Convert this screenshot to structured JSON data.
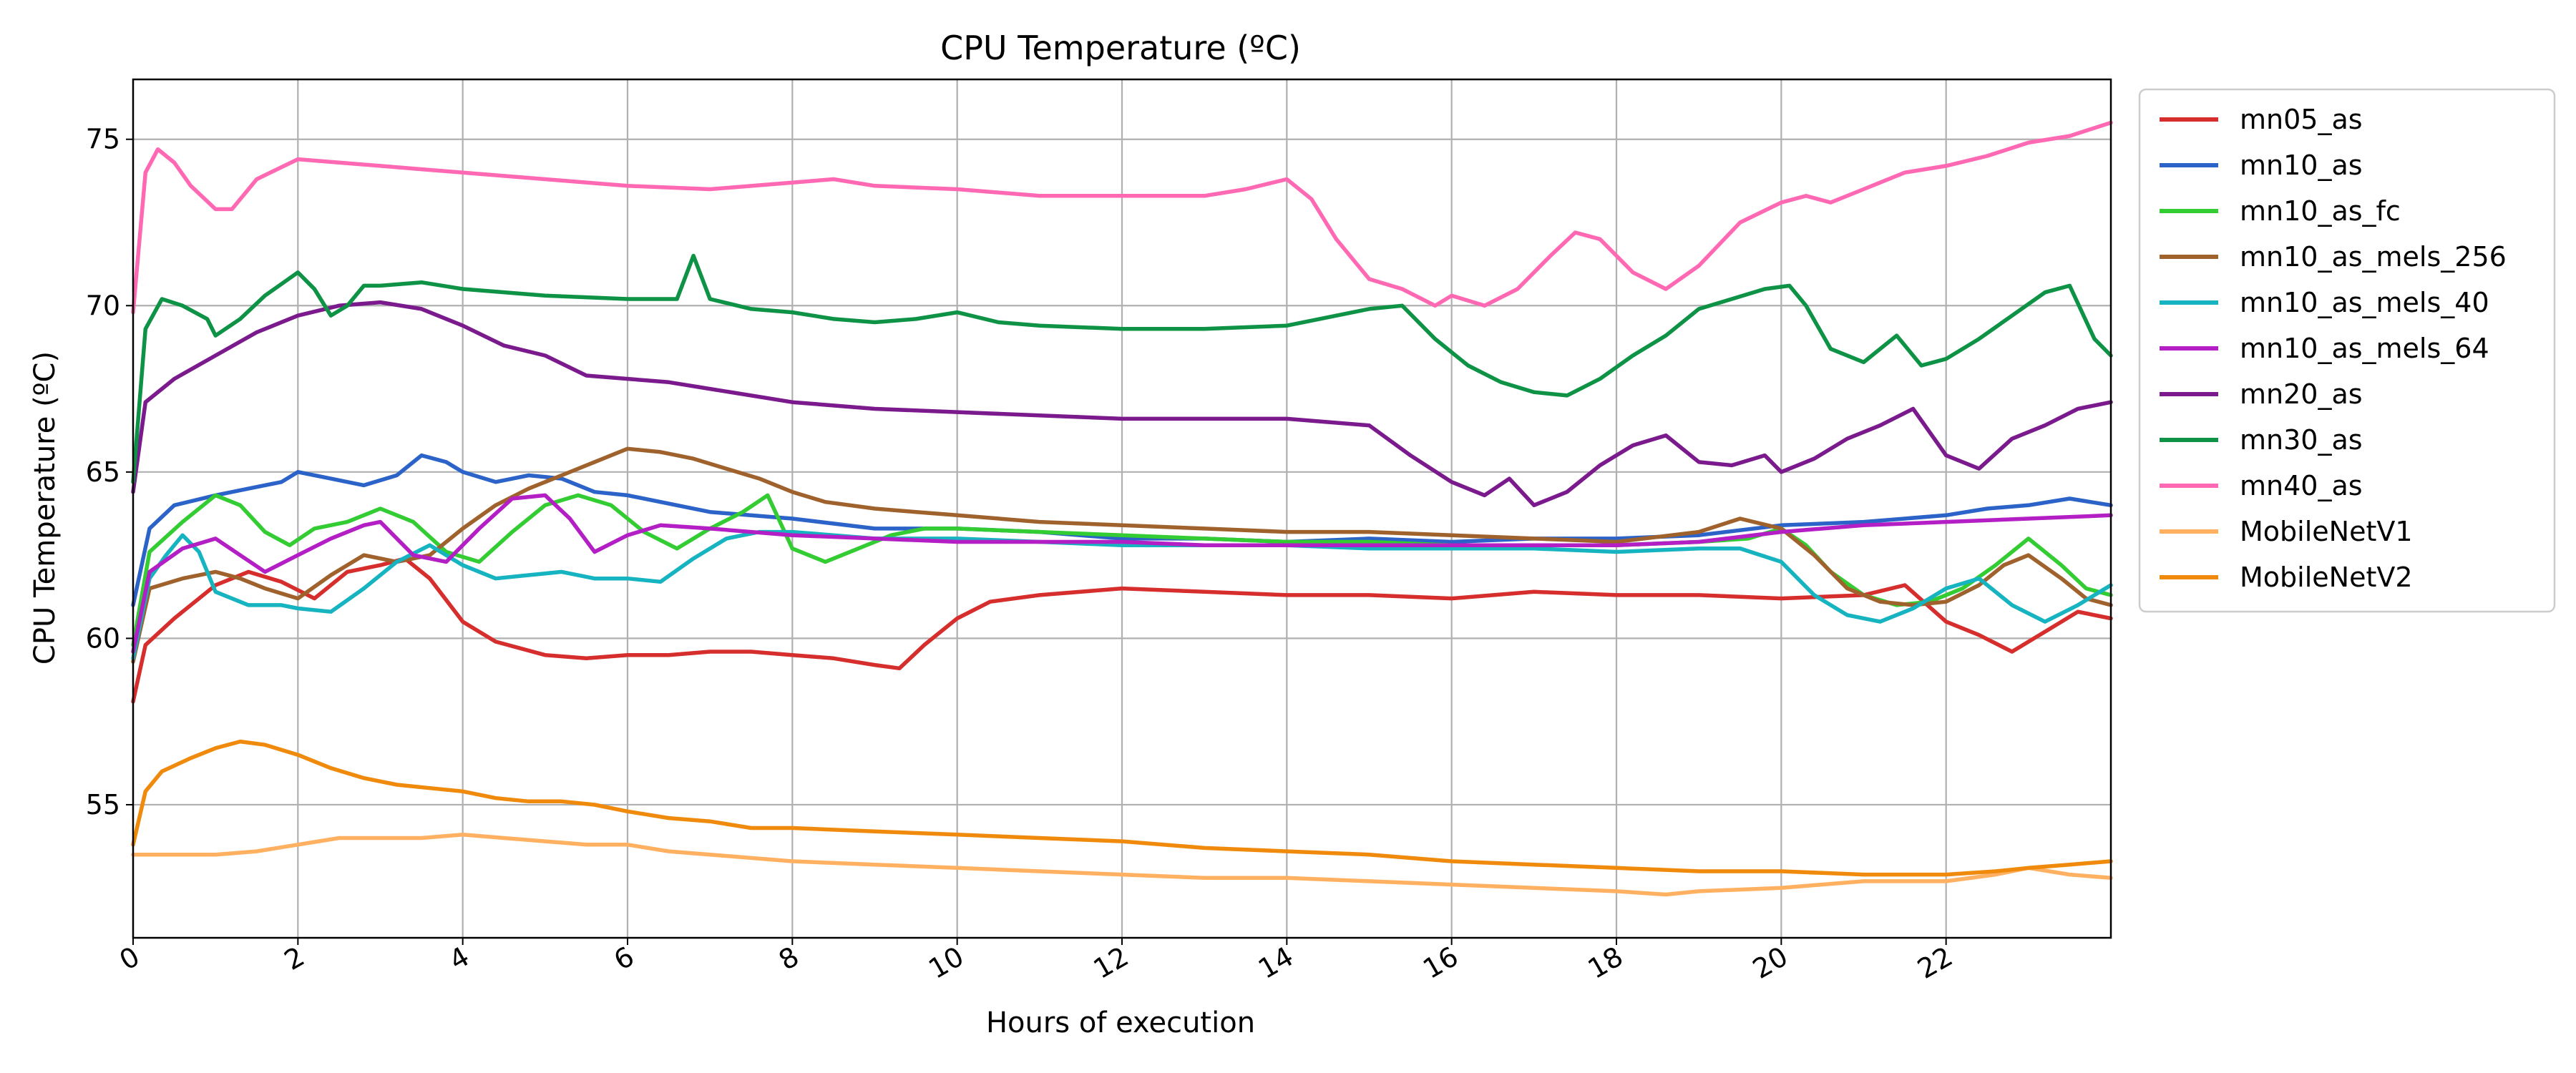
{
  "chart_data": {
    "type": "line",
    "title": "CPU Temperature (ºC)",
    "xlabel": "Hours of execution",
    "ylabel": "CPU Temperature (ºC)",
    "xlim": [
      0,
      24
    ],
    "ylim": [
      51,
      76.8
    ],
    "xticks": [
      0,
      2,
      4,
      6,
      8,
      10,
      12,
      14,
      16,
      18,
      20,
      22
    ],
    "yticks": [
      55,
      60,
      65,
      70,
      75
    ],
    "grid": true,
    "legend_position": "outside-right-top",
    "series": [
      {
        "name": "mn05_as",
        "color": "#d62d2d",
        "x": [
          0,
          0.15,
          0.5,
          1,
          1.4,
          1.8,
          2.2,
          2.6,
          3,
          3.3,
          3.6,
          4,
          4.4,
          5,
          5.5,
          6,
          6.5,
          7,
          7.5,
          8,
          8.5,
          9,
          9.3,
          9.6,
          10,
          10.4,
          11,
          12,
          13,
          14,
          15,
          16,
          17,
          18,
          19,
          20,
          21,
          21.5,
          22,
          22.4,
          22.8,
          23.2,
          23.6,
          24
        ],
        "y": [
          58.1,
          59.8,
          60.6,
          61.6,
          62.0,
          61.7,
          61.2,
          62.0,
          62.2,
          62.4,
          61.8,
          60.5,
          59.9,
          59.5,
          59.4,
          59.5,
          59.5,
          59.6,
          59.6,
          59.5,
          59.4,
          59.2,
          59.1,
          59.8,
          60.6,
          61.1,
          61.3,
          61.5,
          61.4,
          61.3,
          61.3,
          61.2,
          61.4,
          61.3,
          61.3,
          61.2,
          61.3,
          61.6,
          60.5,
          60.1,
          59.6,
          60.2,
          60.8,
          60.6
        ]
      },
      {
        "name": "mn10_as",
        "color": "#2b63c9",
        "x": [
          0,
          0.2,
          0.5,
          1,
          1.4,
          1.8,
          2,
          2.4,
          2.8,
          3.2,
          3.5,
          3.8,
          4,
          4.4,
          4.8,
          5.2,
          5.6,
          6,
          7,
          8,
          9,
          10,
          11,
          12,
          13,
          14,
          15,
          16,
          17,
          18,
          19,
          20,
          21,
          22,
          22.5,
          23,
          23.5,
          24
        ],
        "y": [
          61.0,
          63.3,
          64.0,
          64.3,
          64.5,
          64.7,
          65.0,
          64.8,
          64.6,
          64.9,
          65.5,
          65.3,
          65.0,
          64.7,
          64.9,
          64.8,
          64.4,
          64.3,
          63.8,
          63.6,
          63.3,
          63.3,
          63.2,
          63.0,
          63.0,
          62.9,
          63.0,
          62.9,
          63.0,
          63.0,
          63.1,
          63.4,
          63.5,
          63.7,
          63.9,
          64.0,
          64.2,
          64.0
        ]
      },
      {
        "name": "mn10_as_fc",
        "color": "#33cc33",
        "x": [
          0,
          0.2,
          0.6,
          1,
          1.3,
          1.6,
          1.9,
          2.2,
          2.6,
          3,
          3.4,
          3.8,
          4.2,
          4.6,
          5,
          5.4,
          5.8,
          6.2,
          6.6,
          7,
          7.4,
          7.7,
          8,
          8.4,
          8.8,
          9.2,
          9.6,
          10,
          11,
          12,
          13,
          14,
          15,
          16,
          17,
          18,
          19,
          19.6,
          20,
          20.3,
          20.6,
          21,
          21.4,
          21.8,
          22.2,
          22.6,
          23,
          23.4,
          23.7,
          24
        ],
        "y": [
          59.8,
          62.6,
          63.5,
          64.3,
          64.0,
          63.2,
          62.8,
          63.3,
          63.5,
          63.9,
          63.5,
          62.6,
          62.3,
          63.2,
          64.0,
          64.3,
          64.0,
          63.2,
          62.7,
          63.3,
          63.8,
          64.3,
          62.7,
          62.3,
          62.7,
          63.1,
          63.3,
          63.3,
          63.2,
          63.1,
          63.0,
          62.9,
          62.9,
          62.8,
          62.8,
          62.8,
          62.9,
          63.0,
          63.3,
          62.8,
          62.0,
          61.3,
          61.0,
          61.1,
          61.5,
          62.2,
          63.0,
          62.2,
          61.5,
          61.3
        ]
      },
      {
        "name": "mn10_as_mels_256",
        "color": "#a0622d",
        "x": [
          0,
          0.2,
          0.6,
          1,
          1.3,
          1.6,
          2,
          2.4,
          2.8,
          3.2,
          3.6,
          4,
          4.4,
          4.8,
          5.2,
          5.6,
          6,
          6.4,
          6.8,
          7.2,
          7.6,
          8,
          8.4,
          9,
          9.5,
          10,
          11,
          12,
          13,
          14,
          15,
          16,
          17,
          18,
          19,
          19.5,
          20,
          20.4,
          20.8,
          21.2,
          21.6,
          22,
          22.4,
          22.7,
          23,
          23.4,
          23.7,
          24
        ],
        "y": [
          59.3,
          61.5,
          61.8,
          62.0,
          61.8,
          61.5,
          61.2,
          61.9,
          62.5,
          62.3,
          62.5,
          63.3,
          64.0,
          64.5,
          64.9,
          65.3,
          65.7,
          65.6,
          65.4,
          65.1,
          64.8,
          64.4,
          64.1,
          63.9,
          63.8,
          63.7,
          63.5,
          63.4,
          63.3,
          63.2,
          63.2,
          63.1,
          63.0,
          62.9,
          63.2,
          63.6,
          63.3,
          62.5,
          61.5,
          61.1,
          61.0,
          61.1,
          61.6,
          62.2,
          62.5,
          61.8,
          61.2,
          61.0
        ]
      },
      {
        "name": "mn10_as_mels_40",
        "color": "#16b3c0",
        "x": [
          0,
          0.2,
          0.4,
          0.6,
          0.8,
          1,
          1.4,
          1.8,
          2,
          2.4,
          2.8,
          3.2,
          3.6,
          4,
          4.4,
          4.8,
          5.2,
          5.6,
          6,
          6.4,
          6.8,
          7.2,
          7.6,
          8,
          9,
          10,
          11,
          12,
          13,
          14,
          15,
          16,
          17,
          18,
          19,
          19.5,
          20,
          20.4,
          20.8,
          21.2,
          21.6,
          22,
          22.4,
          22.8,
          23.2,
          23.6,
          24
        ],
        "y": [
          59.4,
          61.8,
          62.5,
          63.1,
          62.6,
          61.4,
          61.0,
          61.0,
          60.9,
          60.8,
          61.5,
          62.3,
          62.8,
          62.2,
          61.8,
          61.9,
          62.0,
          61.8,
          61.8,
          61.7,
          62.4,
          63.0,
          63.2,
          63.2,
          63.0,
          63.0,
          62.9,
          62.8,
          62.8,
          62.8,
          62.7,
          62.7,
          62.7,
          62.6,
          62.7,
          62.7,
          62.3,
          61.3,
          60.7,
          60.5,
          60.9,
          61.5,
          61.8,
          61.0,
          60.5,
          61.0,
          61.6
        ]
      },
      {
        "name": "mn10_as_mels_64",
        "color": "#b31fc4",
        "x": [
          0,
          0.2,
          0.6,
          1,
          1.3,
          1.6,
          2,
          2.4,
          2.8,
          3,
          3.4,
          3.8,
          4.2,
          4.6,
          5,
          5.3,
          5.6,
          6,
          6.4,
          7,
          8,
          9,
          10,
          11,
          12,
          13,
          14,
          15,
          16,
          17,
          18,
          19,
          20,
          21,
          22,
          23,
          24
        ],
        "y": [
          59.6,
          62.0,
          62.7,
          63.0,
          62.5,
          62.0,
          62.5,
          63.0,
          63.4,
          63.5,
          62.5,
          62.3,
          63.3,
          64.2,
          64.3,
          63.6,
          62.6,
          63.1,
          63.4,
          63.3,
          63.1,
          63.0,
          62.9,
          62.9,
          62.9,
          62.8,
          62.8,
          62.8,
          62.8,
          62.8,
          62.8,
          62.9,
          63.2,
          63.4,
          63.5,
          63.6,
          63.7
        ]
      },
      {
        "name": "mn20_as",
        "color": "#7a1a8c",
        "x": [
          0,
          0.15,
          0.5,
          1,
          1.5,
          2,
          2.5,
          3,
          3.5,
          4,
          4.5,
          5,
          5.5,
          6,
          6.5,
          7,
          8,
          9,
          10,
          11,
          12,
          13,
          14,
          15,
          15.5,
          16,
          16.4,
          16.7,
          17,
          17.4,
          17.8,
          18.2,
          18.6,
          19,
          19.4,
          19.8,
          20,
          20.4,
          20.8,
          21.2,
          21.6,
          22,
          22.4,
          22.8,
          23.2,
          23.6,
          24
        ],
        "y": [
          64.4,
          67.1,
          67.8,
          68.5,
          69.2,
          69.7,
          70.0,
          70.1,
          69.9,
          69.4,
          68.8,
          68.5,
          67.9,
          67.8,
          67.7,
          67.5,
          67.1,
          66.9,
          66.8,
          66.7,
          66.6,
          66.6,
          66.6,
          66.4,
          65.5,
          64.7,
          64.3,
          64.8,
          64.0,
          64.4,
          65.2,
          65.8,
          66.1,
          65.3,
          65.2,
          65.5,
          65.0,
          65.4,
          66.0,
          66.4,
          66.9,
          65.5,
          65.1,
          66.0,
          66.4,
          66.9,
          67.1
        ]
      },
      {
        "name": "mn30_as",
        "color": "#0e9346",
        "x": [
          0,
          0.15,
          0.35,
          0.6,
          0.9,
          1,
          1.3,
          1.6,
          2,
          2.2,
          2.4,
          2.6,
          2.8,
          3,
          3.5,
          4,
          5,
          6,
          6.6,
          6.8,
          7,
          7.5,
          8,
          8.5,
          9,
          9.5,
          10,
          10.5,
          11,
          12,
          13,
          14,
          15,
          15.4,
          15.8,
          16.2,
          16.6,
          17,
          17.4,
          17.8,
          18.2,
          18.6,
          19,
          19.4,
          19.8,
          20.1,
          20.3,
          20.6,
          21,
          21.4,
          21.7,
          22,
          22.4,
          22.8,
          23.2,
          23.5,
          23.8,
          24
        ],
        "y": [
          64.7,
          69.3,
          70.2,
          70.0,
          69.6,
          69.1,
          69.6,
          70.3,
          71.0,
          70.5,
          69.7,
          70.0,
          70.6,
          70.6,
          70.7,
          70.5,
          70.3,
          70.2,
          70.2,
          71.5,
          70.2,
          69.9,
          69.8,
          69.6,
          69.5,
          69.6,
          69.8,
          69.5,
          69.4,
          69.3,
          69.3,
          69.4,
          69.9,
          70.0,
          69.0,
          68.2,
          67.7,
          67.4,
          67.3,
          67.8,
          68.5,
          69.1,
          69.9,
          70.2,
          70.5,
          70.6,
          70.0,
          68.7,
          68.3,
          69.1,
          68.2,
          68.4,
          69.0,
          69.7,
          70.4,
          70.6,
          69.0,
          68.5
        ]
      },
      {
        "name": "mn40_as",
        "color": "#ff69b4",
        "x": [
          0,
          0.15,
          0.3,
          0.5,
          0.7,
          1,
          1.2,
          1.5,
          2,
          2.5,
          3,
          3.5,
          4,
          5,
          6,
          7,
          8,
          8.5,
          9,
          10,
          11,
          12,
          13,
          13.5,
          14,
          14.3,
          14.6,
          15,
          15.4,
          15.8,
          16,
          16.4,
          16.8,
          17.2,
          17.5,
          17.8,
          18.2,
          18.6,
          19,
          19.5,
          20,
          20.3,
          20.6,
          21,
          21.5,
          22,
          22.5,
          23,
          23.5,
          24
        ],
        "y": [
          69.8,
          74.0,
          74.7,
          74.3,
          73.6,
          72.9,
          72.9,
          73.8,
          74.4,
          74.3,
          74.2,
          74.1,
          74.0,
          73.8,
          73.6,
          73.5,
          73.7,
          73.8,
          73.6,
          73.5,
          73.3,
          73.3,
          73.3,
          73.5,
          73.8,
          73.2,
          72.0,
          70.8,
          70.5,
          70.0,
          70.3,
          70.0,
          70.5,
          71.5,
          72.2,
          72.0,
          71.0,
          70.5,
          71.2,
          72.5,
          73.1,
          73.3,
          73.1,
          73.5,
          74.0,
          74.2,
          74.5,
          74.9,
          75.1,
          75.5
        ]
      },
      {
        "name": "MobileNetV1",
        "color": "#ffb060",
        "x": [
          0,
          0.5,
          1,
          1.5,
          2,
          2.5,
          3,
          3.5,
          4,
          4.5,
          5,
          5.5,
          6,
          6.5,
          7,
          7.5,
          8,
          9,
          10,
          11,
          12,
          13,
          14,
          15,
          16,
          17,
          18,
          18.6,
          19,
          20,
          21,
          22,
          22.6,
          23,
          23.5,
          24
        ],
        "y": [
          53.5,
          53.5,
          53.5,
          53.6,
          53.8,
          54.0,
          54.0,
          54.0,
          54.1,
          54.0,
          53.9,
          53.8,
          53.8,
          53.6,
          53.5,
          53.4,
          53.3,
          53.2,
          53.1,
          53.0,
          52.9,
          52.8,
          52.8,
          52.7,
          52.6,
          52.5,
          52.4,
          52.3,
          52.4,
          52.5,
          52.7,
          52.7,
          52.9,
          53.1,
          52.9,
          52.8
        ]
      },
      {
        "name": "MobileNetV2",
        "color": "#f08a0c",
        "x": [
          0,
          0.15,
          0.35,
          0.7,
          1,
          1.3,
          1.6,
          2,
          2.4,
          2.8,
          3.2,
          3.6,
          4,
          4.4,
          4.8,
          5.2,
          5.6,
          6,
          6.5,
          7,
          7.5,
          8,
          9,
          10,
          11,
          12,
          13,
          14,
          15,
          16,
          17,
          18,
          19,
          20,
          21,
          22,
          22.6,
          23,
          23.5,
          24
        ],
        "y": [
          53.8,
          55.4,
          56.0,
          56.4,
          56.7,
          56.9,
          56.8,
          56.5,
          56.1,
          55.8,
          55.6,
          55.5,
          55.4,
          55.2,
          55.1,
          55.1,
          55.0,
          54.8,
          54.6,
          54.5,
          54.3,
          54.3,
          54.2,
          54.1,
          54.0,
          53.9,
          53.7,
          53.6,
          53.5,
          53.3,
          53.2,
          53.1,
          53.0,
          53.0,
          52.9,
          52.9,
          53.0,
          53.1,
          53.2,
          53.3
        ]
      }
    ]
  }
}
